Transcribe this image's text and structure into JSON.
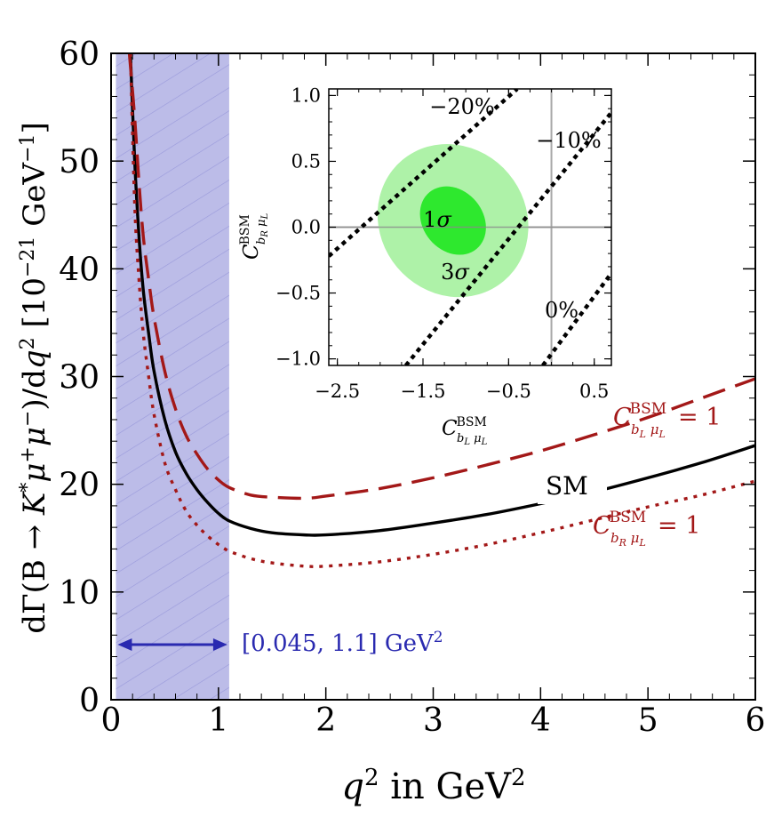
{
  "chart_data": [
    {
      "type": "line",
      "xlabel": "q² in GeV²",
      "ylabel": "dΓ(B → K*μ⁺μ⁻)/dq²  [10⁻²¹ GeV⁻¹]",
      "xlim": [
        0,
        6
      ],
      "ylim": [
        0,
        60
      ],
      "xticks": [
        "0",
        "1",
        "2",
        "3",
        "4",
        "5",
        "6"
      ],
      "yticks": [
        "0",
        "10",
        "20",
        "30",
        "40",
        "50",
        "60"
      ],
      "band": {
        "x_range": [
          0.045,
          1.1
        ],
        "label": "[0.045, 1.1] GeV²",
        "color": "#b8b8e6"
      },
      "series": [
        {
          "name": "SM",
          "style": "solid",
          "color": "#000000",
          "x": [
            0.18,
            0.22,
            0.26,
            0.3,
            0.35,
            0.4,
            0.5,
            0.6,
            0.7,
            0.8,
            0.9,
            1.0,
            1.1,
            1.3,
            1.5,
            1.8,
            2.0,
            2.5,
            3.0,
            3.5,
            4.0,
            4.5,
            5.0,
            5.5,
            6.0
          ],
          "y": [
            60,
            50,
            43,
            38,
            34,
            30.5,
            26,
            23,
            21,
            19.5,
            18.3,
            17.3,
            16.6,
            15.9,
            15.5,
            15.3,
            15.3,
            15.7,
            16.4,
            17.2,
            18.2,
            19.3,
            20.6,
            22.0,
            23.6
          ]
        },
        {
          "name": "C^BSM_{bL μL} = 1",
          "style": "dashed",
          "color": "#a31818",
          "x": [
            0.17,
            0.22,
            0.26,
            0.3,
            0.35,
            0.4,
            0.5,
            0.6,
            0.7,
            0.8,
            0.9,
            1.0,
            1.1,
            1.3,
            1.5,
            1.8,
            2.0,
            2.5,
            3.0,
            3.5,
            4.0,
            4.5,
            5.0,
            5.5,
            6.0
          ],
          "y": [
            60,
            54,
            48,
            43,
            39,
            35.5,
            30.5,
            27,
            24.5,
            22.8,
            21.4,
            20.4,
            19.7,
            19.0,
            18.8,
            18.7,
            18.9,
            19.6,
            20.6,
            21.8,
            23.1,
            24.6,
            26.2,
            28.0,
            29.8
          ]
        },
        {
          "name": "C^BSM_{bR μL} = 1",
          "style": "dotted",
          "color": "#a31818",
          "x": [
            0.18,
            0.22,
            0.26,
            0.3,
            0.35,
            0.4,
            0.5,
            0.6,
            0.7,
            0.8,
            0.9,
            1.0,
            1.1,
            1.3,
            1.5,
            1.8,
            2.0,
            2.5,
            3.0,
            3.5,
            4.0,
            4.5,
            5.0,
            5.5,
            6.0
          ],
          "y": [
            60,
            46,
            39,
            34,
            30,
            26.5,
            22,
            19.5,
            17.5,
            16.2,
            15.2,
            14.4,
            13.8,
            13.1,
            12.7,
            12.4,
            12.4,
            12.8,
            13.5,
            14.4,
            15.5,
            16.7,
            17.9,
            19.0,
            20.3
          ]
        }
      ],
      "labels": {
        "sm": "SM",
        "c_bl": {
          "sym": "C",
          "sup": "BSM",
          "sub_b": "b",
          "sub_b_idx": "L",
          "sub_mu": "μ",
          "sub_mu_idx": "L",
          "eq": "= 1"
        },
        "c_br": {
          "sym": "C",
          "sup": "BSM",
          "sub_b": "b",
          "sub_b_idx": "R",
          "sub_mu": "μ",
          "sub_mu_idx": "L",
          "eq": "= 1"
        }
      }
    },
    {
      "type": "contour",
      "xlim": [
        -2.6,
        0.7
      ],
      "ylim": [
        -1.05,
        1.05
      ],
      "xticks": [
        "−2.5",
        "−1.5",
        "−0.5",
        "0.5"
      ],
      "yticks": [
        "1.0",
        "0.5",
        "0.0",
        "−0.5",
        "−1.0"
      ],
      "xlabel": {
        "sym": "C",
        "sup": "BSM",
        "sub": "bL μL"
      },
      "ylabel": {
        "sym": "C",
        "sup": "BSM",
        "sub": "bR μL"
      },
      "center": [
        -1.15,
        0.05
      ],
      "regions": [
        {
          "name": "1σ",
          "label": "1σ",
          "rx": 0.35,
          "ry": 0.28,
          "angle_deg": -40,
          "color": "#2ee82e"
        },
        {
          "name": "3σ",
          "label": "3σ",
          "rx": 0.85,
          "ry": 0.6,
          "angle_deg": -40,
          "color": "#aef2a8"
        }
      ],
      "contour_lines": [
        {
          "label": "−20%",
          "from": [
            -2.6,
            -0.22
          ],
          "to": [
            -0.4,
            1.05
          ]
        },
        {
          "label": "−10%",
          "from": [
            -1.7,
            -1.05
          ],
          "to": [
            0.7,
            0.87
          ]
        },
        {
          "label": "0%",
          "from": [
            -0.1,
            -1.05
          ],
          "to": [
            0.7,
            -0.35
          ]
        }
      ],
      "grid_lines": {
        "x": 0,
        "y": 0
      }
    }
  ]
}
